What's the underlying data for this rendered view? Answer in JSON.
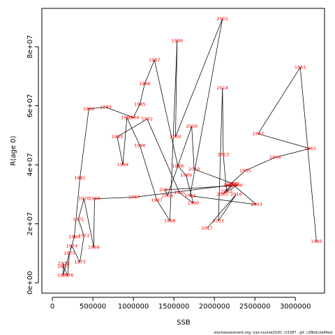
{
  "chart_data": {
    "type": "line",
    "xlabel": "SSB",
    "ylabel": "R(age 0)",
    "xlim": [
      -130000,
      3360000
    ],
    "ylim": [
      -3500000,
      93000000
    ],
    "x_ticks": [
      0,
      500000,
      1000000,
      1500000,
      2000000,
      2500000,
      3000000
    ],
    "x_tick_labels": [
      "0",
      "500000",
      "1000000",
      "1500000",
      "2000000",
      "2500000",
      "3000000"
    ],
    "y_ticks": [
      0,
      20000000,
      40000000,
      60000000,
      80000000
    ],
    "y_tick_labels": [
      "0e+00",
      "2e+07",
      "4e+07",
      "6e+07",
      "8e+07"
    ],
    "grid": false,
    "line_color": "#000000",
    "label_color": "#ff0000",
    "points": [
      {
        "year": "1960",
        "x": 3260000,
        "y": 14000000
      },
      {
        "year": "1961",
        "x": 3060000,
        "y": 73000000
      },
      {
        "year": "1962",
        "x": 2540000,
        "y": 50500000
      },
      {
        "year": "1963",
        "x": 3180000,
        "y": 45500000
      },
      {
        "year": "1964",
        "x": 2750000,
        "y": 42500000
      },
      {
        "year": "1965",
        "x": 2380000,
        "y": 38000000
      },
      {
        "year": "1966",
        "x": 2180000,
        "y": 33000000
      },
      {
        "year": "1967",
        "x": 1010000,
        "y": 29000000
      },
      {
        "year": "1968",
        "x": 520000,
        "y": 28500000
      },
      {
        "year": "1969",
        "x": 510000,
        "y": 12000000
      },
      {
        "year": "1970",
        "x": 390000,
        "y": 28500000
      },
      {
        "year": "1971",
        "x": 320000,
        "y": 21500000
      },
      {
        "year": "1972",
        "x": 390000,
        "y": 16000000
      },
      {
        "year": "1973",
        "x": 340000,
        "y": 7000000
      },
      {
        "year": "1974",
        "x": 240000,
        "y": 12500000
      },
      {
        "year": "1975",
        "x": 210000,
        "y": 10000000
      },
      {
        "year": "1976",
        "x": 190000,
        "y": 2500000
      },
      {
        "year": "1977",
        "x": 130000,
        "y": 5500000
      },
      {
        "year": "1978",
        "x": 140000,
        "y": 6500000
      },
      {
        "year": "1979",
        "x": 130000,
        "y": 2500000
      },
      {
        "year": "1980",
        "x": 270000,
        "y": 15500000
      },
      {
        "year": "1981",
        "x": 340000,
        "y": 35500000
      },
      {
        "year": "1982",
        "x": 450000,
        "y": 59000000
      },
      {
        "year": "1983",
        "x": 660000,
        "y": 59500000
      },
      {
        "year": "1984",
        "x": 1000000,
        "y": 56000000
      },
      {
        "year": "1985",
        "x": 1080000,
        "y": 60500000
      },
      {
        "year": "1986",
        "x": 1140000,
        "y": 67500000
      },
      {
        "year": "1987",
        "x": 1260000,
        "y": 75500000
      },
      {
        "year": "1988",
        "x": 1550000,
        "y": 39500000
      },
      {
        "year": "1989",
        "x": 1650000,
        "y": 36500000
      },
      {
        "year": "1990",
        "x": 1740000,
        "y": 27000000
      },
      {
        "year": "1991",
        "x": 1570000,
        "y": 30500000
      },
      {
        "year": "1992",
        "x": 1170000,
        "y": 55500000
      },
      {
        "year": "1993",
        "x": 800000,
        "y": 49500000
      },
      {
        "year": "1994",
        "x": 870000,
        "y": 40000000
      },
      {
        "year": "1995",
        "x": 920000,
        "y": 56000000
      },
      {
        "year": "1996",
        "x": 1080000,
        "y": 46500000
      },
      {
        "year": "1997",
        "x": 1290000,
        "y": 28000000
      },
      {
        "year": "1998",
        "x": 1450000,
        "y": 21000000
      },
      {
        "year": "1999",
        "x": 1540000,
        "y": 82000000
      },
      {
        "year": "2000",
        "x": 1520000,
        "y": 49500000
      },
      {
        "year": "2001",
        "x": 2100000,
        "y": 89500000
      },
      {
        "year": "2002",
        "x": 1700000,
        "y": 29500000
      },
      {
        "year": "2003",
        "x": 2520000,
        "y": 26500000
      },
      {
        "year": "2004",
        "x": 2220000,
        "y": 33500000
      },
      {
        "year": "2005",
        "x": 2100000,
        "y": 30000000
      },
      {
        "year": "2006",
        "x": 2280000,
        "y": 33000000
      },
      {
        "year": "2007",
        "x": 1390000,
        "y": 31500000
      },
      {
        "year": "2008",
        "x": 1420000,
        "y": 29500000
      },
      {
        "year": "2009",
        "x": 1720000,
        "y": 53000000
      },
      {
        "year": "2010",
        "x": 1750000,
        "y": 38500000
      },
      {
        "year": "2011",
        "x": 2240000,
        "y": 33500000
      },
      {
        "year": "2012",
        "x": 2150000,
        "y": 31000000
      },
      {
        "year": "2013",
        "x": 2110000,
        "y": 43500000
      },
      {
        "year": "2014",
        "x": 2100000,
        "y": 66000000
      },
      {
        "year": "2015",
        "x": 2050000,
        "y": 21000000
      },
      {
        "year": "2016",
        "x": 2270000,
        "y": 30000000
      },
      {
        "year": "2017",
        "x": 1910000,
        "y": 18500000
      }
    ]
  },
  "footer": "stockassessment.org, ices-course2020, r13287 , git: c28bdc2a44ad"
}
